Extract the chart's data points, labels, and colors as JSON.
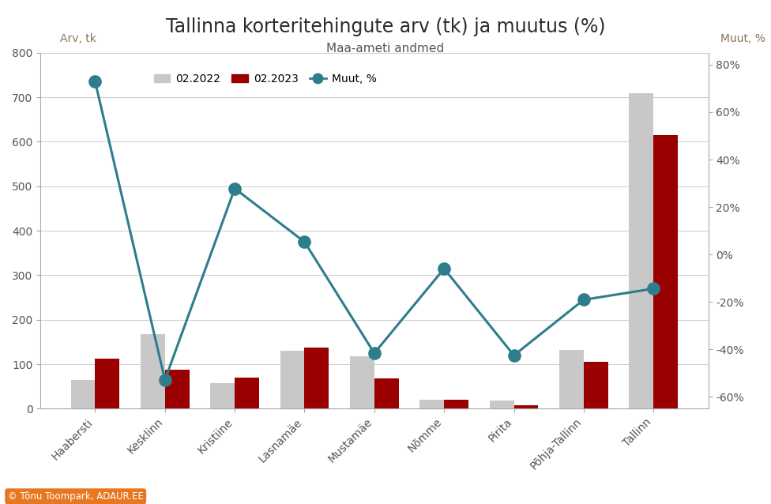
{
  "categories": [
    "Haabersti",
    "Kesklinn",
    "Kristiine",
    "Lasnamäe",
    "Mustamäe",
    "Nõmme",
    "Pirita",
    "Põhja-Tallinn",
    "Tallinn"
  ],
  "values_2022": [
    65,
    168,
    58,
    130,
    118,
    20,
    18,
    133,
    710
  ],
  "values_2023": [
    113,
    88,
    70,
    137,
    68,
    20,
    8,
    106,
    615
  ],
  "line_left_values": [
    735,
    65,
    495,
    375,
    125,
    315,
    120,
    245,
    270
  ],
  "bar_color_2022": "#c8c8c8",
  "bar_color_2023": "#9b0000",
  "line_color": "#2e7d8c",
  "title": "Tallinna korteritehingute arv (tk) ja muutus (%)",
  "subtitle": "Maa-ameti andmed",
  "ylabel_left": "Arv, tk",
  "ylabel_right": "Muut, %",
  "legend_2022": "02.2022",
  "legend_2023": "02.2023",
  "legend_line": "Muut, %",
  "ylim_left": [
    0,
    800
  ],
  "yticks_left": [
    0,
    100,
    200,
    300,
    400,
    500,
    600,
    700,
    800
  ],
  "ylim_right": [
    -0.65,
    0.85
  ],
  "yticks_right": [
    -0.6,
    -0.4,
    -0.2,
    0.0,
    0.2,
    0.4,
    0.6,
    0.8
  ],
  "ytick_labels_right": [
    "-60%",
    "-40%",
    "-20%",
    "0%",
    "20%",
    "40%",
    "60%",
    "80%"
  ],
  "background_color": "#ffffff",
  "title_color": "#2b2b2b",
  "subtitle_color": "#555555",
  "axis_label_color": "#8B7355",
  "tick_color": "#555555",
  "watermark_text": "© Tõnu Toompark, ADAUR.EE",
  "watermark_bg": "#e87722",
  "title_fontsize": 17,
  "subtitle_fontsize": 11,
  "legend_fontsize": 10,
  "tick_fontsize": 10,
  "bar_width": 0.35
}
